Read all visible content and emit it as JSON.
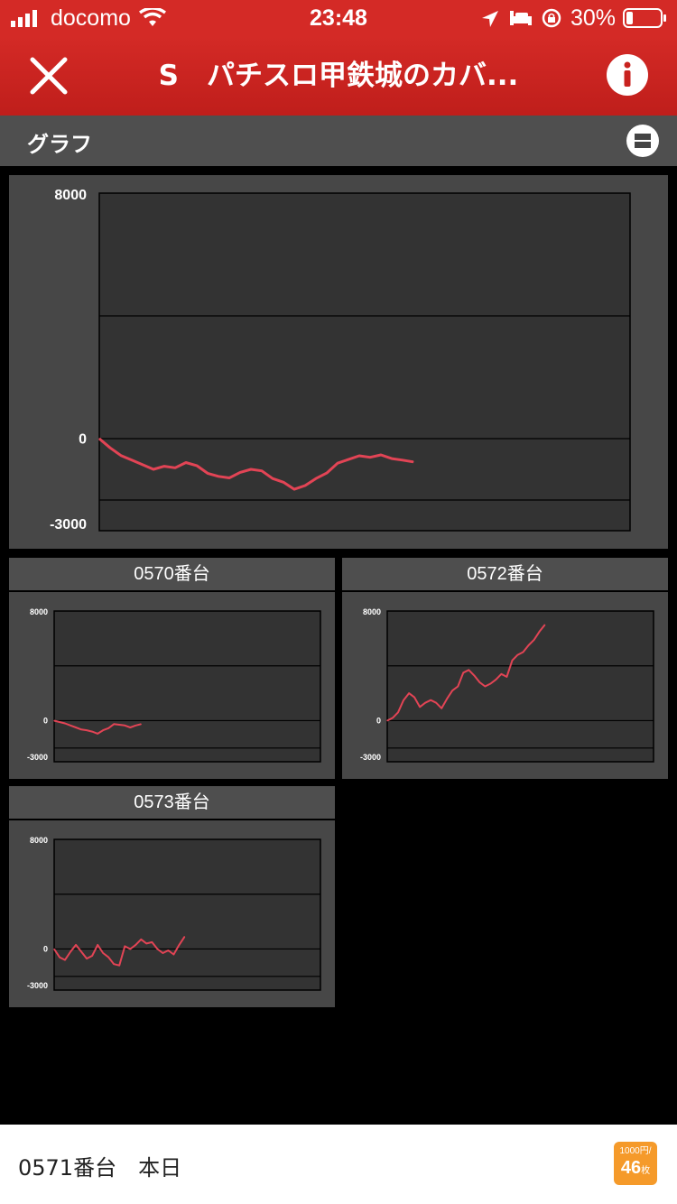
{
  "status": {
    "carrier": "docomo",
    "time": "23:48",
    "battery": "30%"
  },
  "nav": {
    "title": "S　パチスロ甲鉄城のカバ..."
  },
  "section": {
    "title": "グラフ"
  },
  "bottom": {
    "label": "0571番台　本日",
    "badge_top": "1000円/",
    "badge_value": "46",
    "badge_unit": "枚"
  },
  "colors": {
    "nav": "#d42a26",
    "line": "#e24455",
    "plot_bg": "#333333",
    "panel_bg": "#474747"
  },
  "chart_data": [
    {
      "id": "main",
      "type": "line",
      "title": "",
      "ylim": [
        -3000,
        8000
      ],
      "y_ticks": [
        8000,
        0,
        -3000
      ],
      "values": [
        0,
        -300,
        -550,
        -700,
        -850,
        -1000,
        -900,
        -950,
        -780,
        -880,
        -1130,
        -1230,
        -1280,
        -1100,
        -1000,
        -1050,
        -1300,
        -1420,
        -1650,
        -1530,
        -1300,
        -1120,
        -800,
        -680,
        -560,
        -610,
        -530,
        -650,
        -700,
        -760
      ]
    },
    {
      "id": "c0570",
      "type": "line",
      "title": "0570番台",
      "ylim": [
        -3000,
        8000
      ],
      "y_ticks": [
        8000,
        0,
        -3000
      ],
      "values": [
        0,
        -100,
        -200,
        -350,
        -500,
        -650,
        -700,
        -800,
        -950,
        -700,
        -550,
        -250,
        -300,
        -350,
        -500,
        -350,
        -250
      ]
    },
    {
      "id": "c0572",
      "type": "line",
      "title": "0572番台",
      "ylim": [
        -3000,
        8000
      ],
      "y_ticks": [
        8000,
        0,
        -3000
      ],
      "values": [
        0,
        200,
        600,
        1500,
        2000,
        1700,
        1000,
        1300,
        1500,
        1300,
        900,
        1600,
        2200,
        2500,
        3500,
        3700,
        3300,
        2800,
        2500,
        2700,
        3000,
        3400,
        3200,
        4400,
        4800,
        5000,
        5500,
        5900,
        6500,
        7000
      ]
    },
    {
      "id": "c0573",
      "type": "line",
      "title": "0573番台",
      "ylim": [
        -3000,
        8000
      ],
      "y_ticks": [
        8000,
        0,
        -3000
      ],
      "values": [
        0,
        -600,
        -800,
        -200,
        300,
        -200,
        -700,
        -500,
        300,
        -300,
        -600,
        -1100,
        -1200,
        200,
        0,
        300,
        700,
        400,
        500,
        0,
        -300,
        -100,
        -400,
        300,
        900
      ]
    }
  ]
}
